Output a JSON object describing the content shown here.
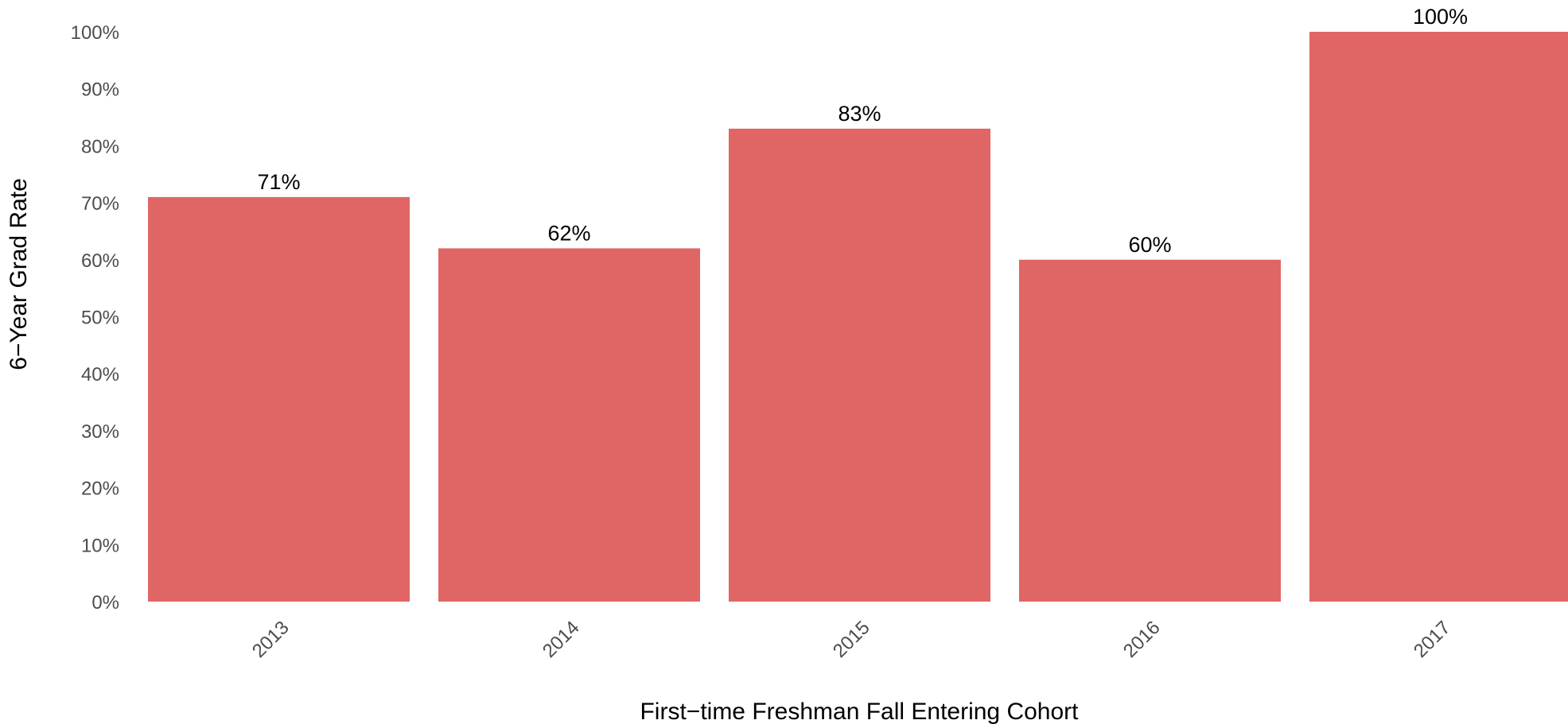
{
  "chart_data": {
    "type": "bar",
    "categories": [
      "2013",
      "2014",
      "2015",
      "2016",
      "2017"
    ],
    "values": [
      71,
      62,
      83,
      60,
      100
    ],
    "data_labels": [
      "71%",
      "62%",
      "83%",
      "60%",
      "100%"
    ],
    "xlabel": "First−time Freshman Fall Entering Cohort",
    "ylabel": "6−Year Grad Rate",
    "ylim": [
      0,
      100
    ],
    "y_ticks": [
      0,
      10,
      20,
      30,
      40,
      50,
      60,
      70,
      80,
      90,
      100
    ],
    "y_tick_labels": [
      "0%",
      "10%",
      "20%",
      "30%",
      "40%",
      "50%",
      "60%",
      "70%",
      "80%",
      "90%",
      "100%"
    ],
    "grid": false,
    "bar_color": "#e06666"
  }
}
